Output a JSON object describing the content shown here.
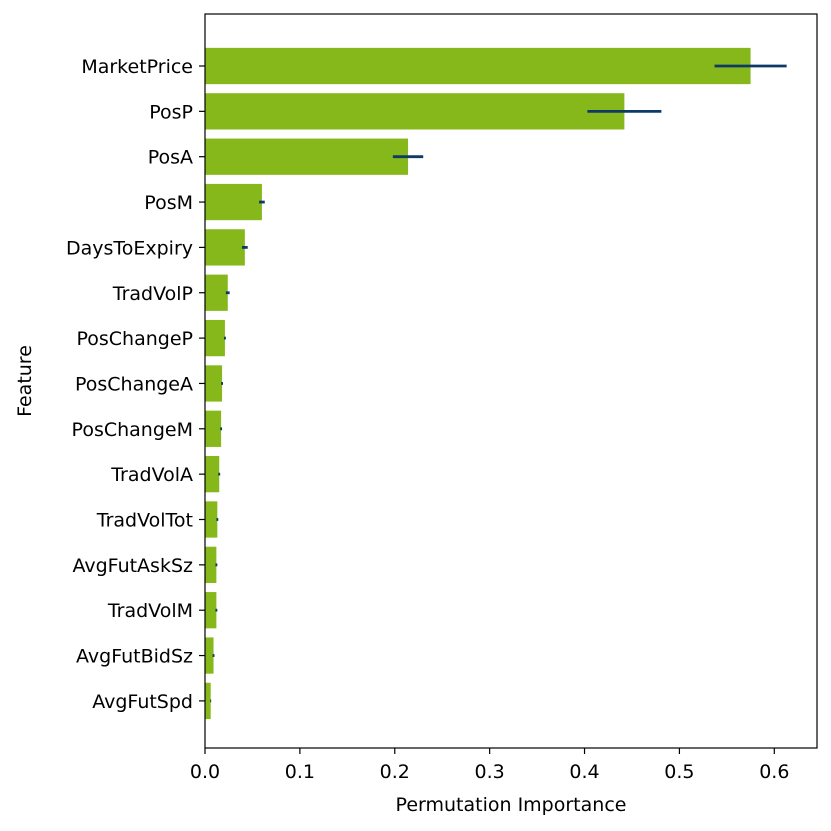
{
  "chart_data": {
    "type": "bar",
    "orientation": "horizontal",
    "categories": [
      "MarketPrice",
      "PosP",
      "PosA",
      "PosM",
      "DaysToExpiry",
      "TradVolP",
      "PosChangeP",
      "PosChangeA",
      "PosChangeM",
      "TradVolA",
      "TradVolTot",
      "AvgFutAskSz",
      "TradVolM",
      "AvgFutBidSz",
      "AvgFutSpd"
    ],
    "values": [
      0.575,
      0.442,
      0.214,
      0.06,
      0.042,
      0.024,
      0.021,
      0.018,
      0.017,
      0.015,
      0.013,
      0.012,
      0.012,
      0.009,
      0.006
    ],
    "errors": [
      0.038,
      0.039,
      0.016,
      0.003,
      0.003,
      0.002,
      0.001,
      0.001,
      0.001,
      0.001,
      0.001,
      0.001,
      0.001,
      0.001,
      0.0005
    ],
    "xlabel": "Permutation Importance",
    "ylabel": "Feature",
    "xlim": [
      0.0,
      0.645
    ],
    "xticks": [
      "0.0",
      "0.1",
      "0.2",
      "0.3",
      "0.4",
      "0.5",
      "0.6"
    ],
    "grid": false,
    "legend": "none",
    "bar_color": "#86b81b",
    "error_color": "#0d3b66"
  }
}
